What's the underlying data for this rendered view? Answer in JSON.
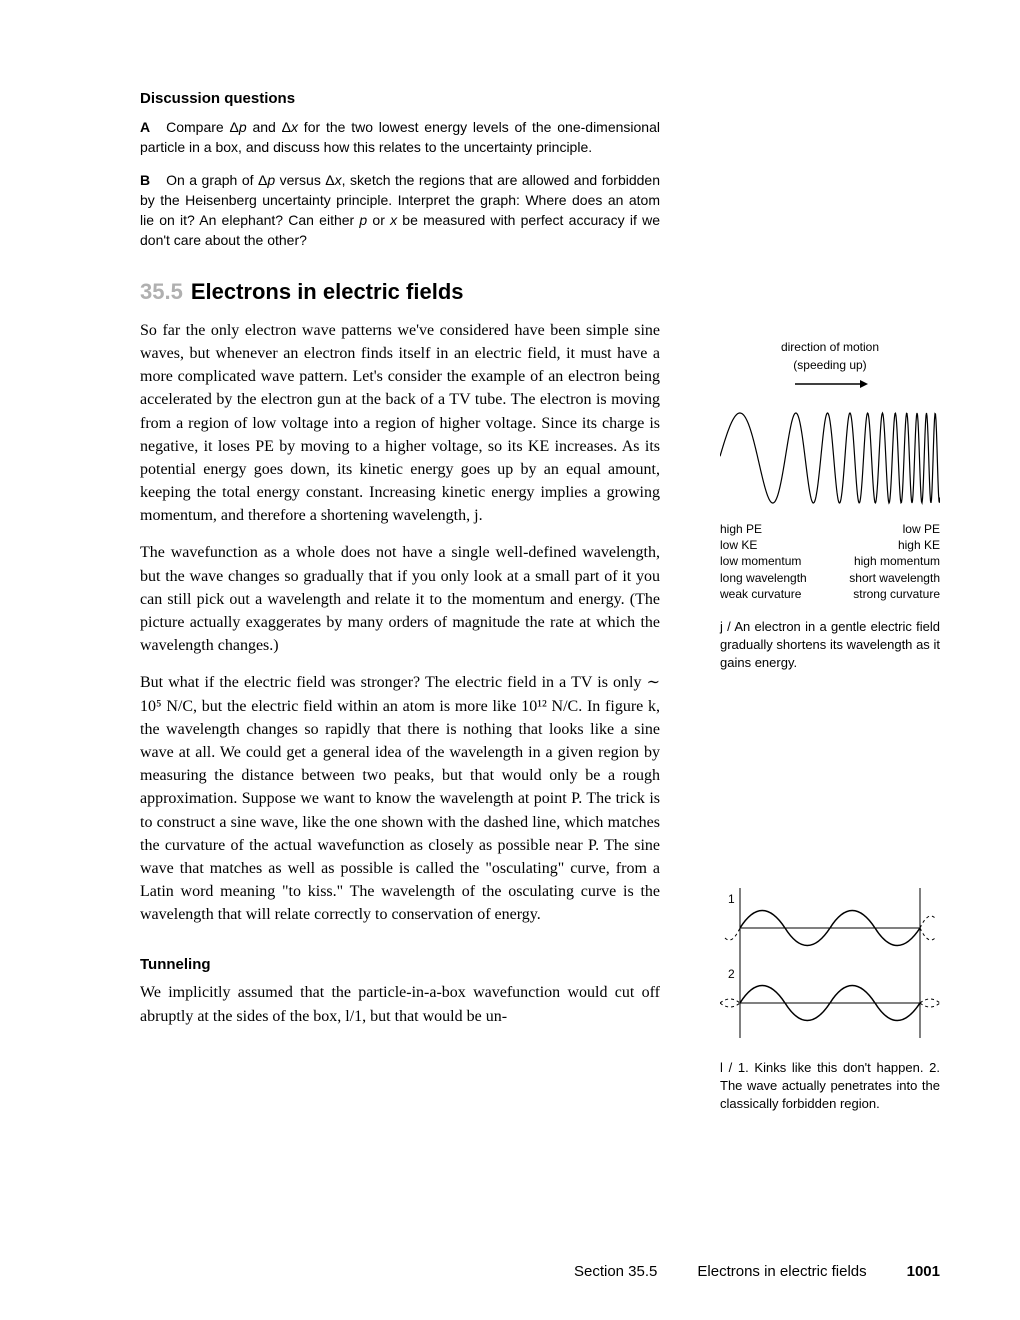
{
  "discussion": {
    "heading": "Discussion questions",
    "A_label": "A",
    "A_text": "Compare Δp and Δx for the two lowest energy levels of the one-dimensional particle in a box, and discuss how this relates to the uncertainty principle.",
    "B_label": "B",
    "B_text": "On a graph of Δp versus Δx, sketch the regions that are allowed and forbidden by the Heisenberg uncertainty principle. Interpret the graph: Where does an atom lie on it? An elephant? Can either p or x be measured with perfect accuracy if we don't care about the other?"
  },
  "section": {
    "number": "35.5",
    "title": "Electrons in electric fields"
  },
  "body": {
    "p1": "So far the only electron wave patterns we've considered have been simple sine waves, but whenever an electron finds itself in an electric field, it must have a more complicated wave pattern. Let's consider the example of an electron being accelerated by the electron gun at the back of a TV tube. The electron is moving from a region of low voltage into a region of higher voltage. Since its charge is negative, it loses PE by moving to a higher voltage, so its KE increases. As its potential energy goes down, its kinetic energy goes up by an equal amount, keeping the total energy constant. Increasing kinetic energy implies a growing momentum, and therefore a shortening wavelength, j.",
    "p2": "The wavefunction as a whole does not have a single well-defined wavelength, but the wave changes so gradually that if you only look at a small part of it you can still pick out a wavelength and relate it to the momentum and energy. (The picture actually exaggerates by many orders of magnitude the rate at which the wavelength changes.)",
    "p3": "But what if the electric field was stronger? The electric field in a TV is only ∼ 10⁵ N/C, but the electric field within an atom is more like 10¹² N/C. In figure k, the wavelength changes so rapidly that there is nothing that looks like a sine wave at all. We could get a general idea of the wavelength in a given region by measuring the distance between two peaks, but that would only be a rough approximation. Suppose we want to know the wavelength at point P. The trick is to construct a sine wave, like the one shown with the dashed line, which matches the curvature of the actual wavefunction as closely as possible near P. The sine wave that matches as well as possible is called the \"osculating\" curve, from a Latin word meaning \"to kiss.\" The wavelength of the osculating curve is the wavelength that will relate correctly to conservation of energy."
  },
  "tunneling": {
    "heading": "Tunneling",
    "p": "We implicitly assumed that the particle-in-a-box wavefunction would cut off abruptly at the sides of the box, l/1, but that would be un-"
  },
  "figJ": {
    "top1": "direction of motion",
    "top2": "(speeding up)",
    "left": {
      "l1": "high PE",
      "l2": "low KE",
      "l3": "low momentum",
      "l4": "long wavelength",
      "l5": "weak curvature"
    },
    "right": {
      "l1": "low PE",
      "l2": "high KE",
      "l3": "high momentum",
      "l4": "short wavelength",
      "l5": "strong curvature"
    },
    "caption": "j / An electron in a gentle electric field gradually shortens its wavelength as it gains energy.",
    "wave_color": "#000000",
    "stroke_width": 1.2
  },
  "figL": {
    "label1": "1",
    "label2": "2",
    "caption": "l / 1. Kinks like this don't happen. 2. The wave actually penetrates into the classically forbidden region.",
    "stroke": "#000000",
    "dash": "3 3"
  },
  "footer": {
    "left": "Section 35.5",
    "mid": "Electrons in electric fields",
    "page": "1001"
  }
}
